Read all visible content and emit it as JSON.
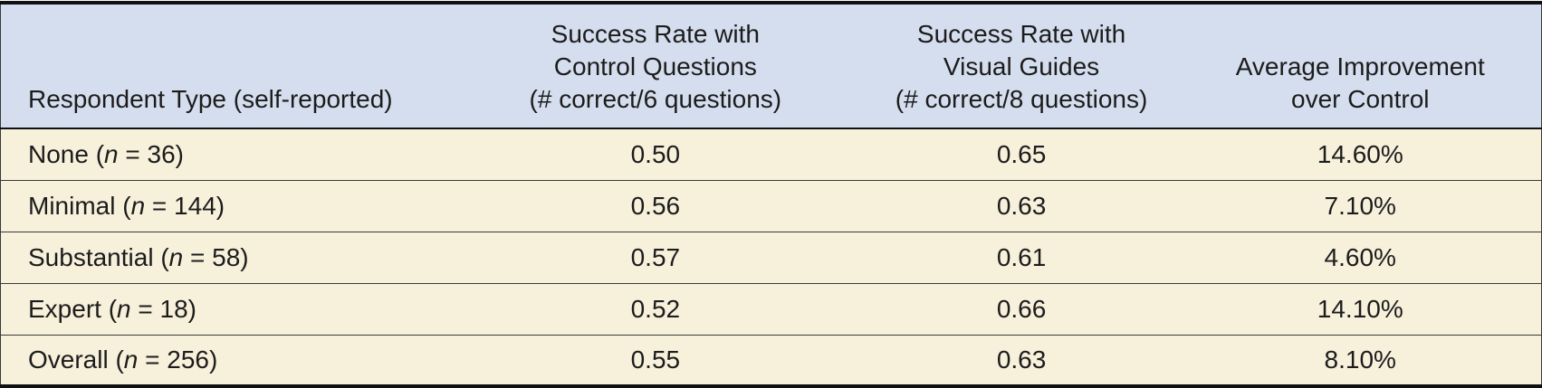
{
  "colors": {
    "header_bg": "#d5deee",
    "row_bg": "#f7f0db",
    "border_strong": "#111111",
    "border_thin": "#3a3a3a",
    "text": "#1c1c1c"
  },
  "table": {
    "columns": [
      {
        "lines": [
          "Respondent Type (self-reported)"
        ],
        "align": "left"
      },
      {
        "lines": [
          "Success Rate with",
          "Control Questions",
          "(# correct/6 questions)"
        ],
        "align": "center"
      },
      {
        "lines": [
          "Success Rate with",
          "Visual Guides",
          "(# correct/8 questions)"
        ],
        "align": "center"
      },
      {
        "lines": [
          "Average Improvement",
          "over Control"
        ],
        "align": "center"
      }
    ],
    "rows": [
      {
        "label_prefix": "None (",
        "n_symbol": "n",
        "label_suffix": " = 36)",
        "label_full": "None (n = 36)",
        "control": "0.50",
        "visual": "0.65",
        "improvement": "14.60%"
      },
      {
        "label_prefix": "Minimal (",
        "n_symbol": "n",
        "label_suffix": " = 144)",
        "label_full": "Minimal (n = 144)",
        "control": "0.56",
        "visual": "0.63",
        "improvement": "7.10%"
      },
      {
        "label_prefix": "Substantial (",
        "n_symbol": "n",
        "label_suffix": " = 58)",
        "label_full": "Substantial (n = 58)",
        "control": "0.57",
        "visual": "0.61",
        "improvement": "4.60%"
      },
      {
        "label_prefix": "Expert (",
        "n_symbol": "n",
        "label_suffix": " = 18)",
        "label_full": "Expert (n = 18)",
        "control": "0.52",
        "visual": "0.66",
        "improvement": "14.10%"
      },
      {
        "label_prefix": "Overall (",
        "n_symbol": "n",
        "label_suffix": " = 256)",
        "label_full": "Overall (n = 256)",
        "control": "0.55",
        "visual": "0.63",
        "improvement": "8.10%"
      }
    ]
  },
  "chart_data": {
    "type": "table",
    "title": "",
    "columns": [
      "Respondent Type (self-reported)",
      "Success Rate with Control Questions (# correct/6 questions)",
      "Success Rate with Visual Guides (# correct/8 questions)",
      "Average Improvement over Control"
    ],
    "rows": [
      [
        "None (n = 36)",
        0.5,
        0.65,
        "14.60%"
      ],
      [
        "Minimal (n = 144)",
        0.56,
        0.63,
        "7.10%"
      ],
      [
        "Substantial (n = 58)",
        0.57,
        0.61,
        "4.60%"
      ],
      [
        "Expert (n = 18)",
        0.52,
        0.66,
        "14.10%"
      ],
      [
        "Overall (n = 256)",
        0.55,
        0.63,
        "8.10%"
      ]
    ]
  }
}
